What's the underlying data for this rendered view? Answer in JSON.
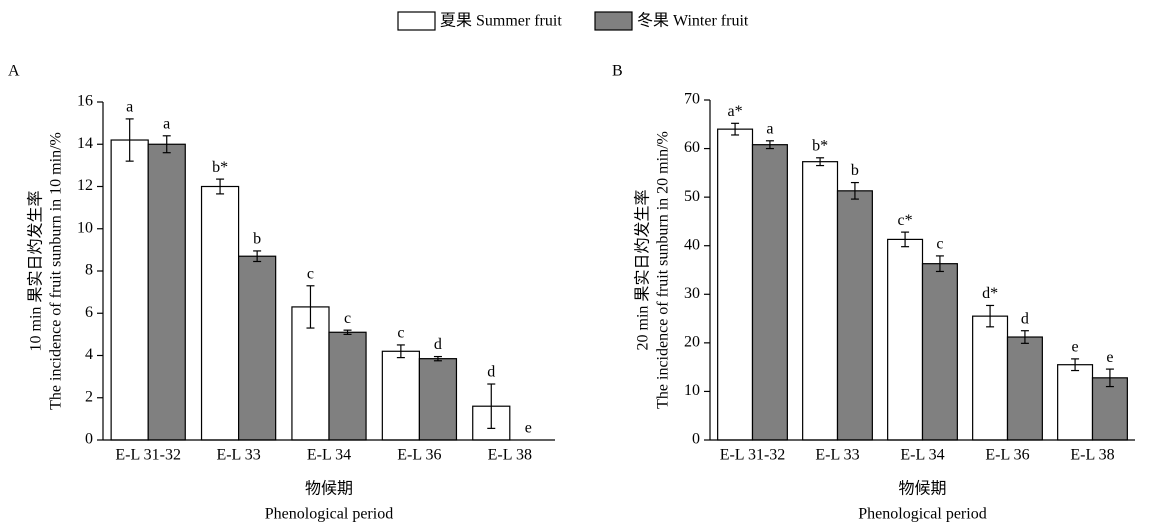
{
  "chart_data": [
    {
      "type": "bar",
      "panel": "A",
      "y_label": [
        "10 min 果实日灼发生率",
        "The incidence of fruit sunburn in 10 min/%"
      ],
      "x_label": [
        "物候期",
        "Phenological period"
      ],
      "categories": [
        "E-L 31-32",
        "E-L 33",
        "E-L 34",
        "E-L 36",
        "E-L 38"
      ],
      "ylim": [
        0,
        16
      ],
      "yticks": [
        0,
        2,
        4,
        6,
        8,
        10,
        12,
        14,
        16
      ],
      "series": [
        {
          "name": "夏果 Summer fruit",
          "color": "#ffffff",
          "values": [
            14.2,
            12.0,
            6.3,
            4.2,
            1.6
          ],
          "errors": [
            1.0,
            0.35,
            1.0,
            0.3,
            1.05
          ],
          "letters": [
            "a",
            "b*",
            "c",
            "c",
            "d"
          ]
        },
        {
          "name": "冬果 Winter fruit",
          "color": "#808080",
          "values": [
            14.0,
            8.7,
            5.1,
            3.85,
            0
          ],
          "errors": [
            0.4,
            0.25,
            0.1,
            0.1,
            0
          ],
          "letters": [
            "a",
            "b",
            "c",
            "d",
            "e"
          ]
        }
      ]
    },
    {
      "type": "bar",
      "panel": "B",
      "y_label": [
        "20 min 果实日灼发生率",
        "The incidence of fruit sunburn in 20 min/%"
      ],
      "x_label": [
        "物候期",
        "Phenological period"
      ],
      "categories": [
        "E-L 31-32",
        "E-L 33",
        "E-L 34",
        "E-L 36",
        "E-L 38"
      ],
      "ylim": [
        0,
        70
      ],
      "yticks": [
        0,
        10,
        20,
        30,
        40,
        50,
        60,
        70
      ],
      "series": [
        {
          "color": "#ffffff",
          "values": [
            64,
            57.3,
            41.3,
            25.5,
            15.5
          ],
          "errors": [
            1.2,
            0.8,
            1.5,
            2.2,
            1.2
          ],
          "letters": [
            "a*",
            "b*",
            "c*",
            "d*",
            "e"
          ]
        },
        {
          "color": "#808080",
          "values": [
            60.8,
            51.3,
            36.3,
            21.2,
            12.8
          ],
          "errors": [
            0.8,
            1.7,
            1.6,
            1.3,
            1.8
          ],
          "letters": [
            "a",
            "b",
            "c",
            "d",
            "e"
          ]
        }
      ]
    }
  ]
}
